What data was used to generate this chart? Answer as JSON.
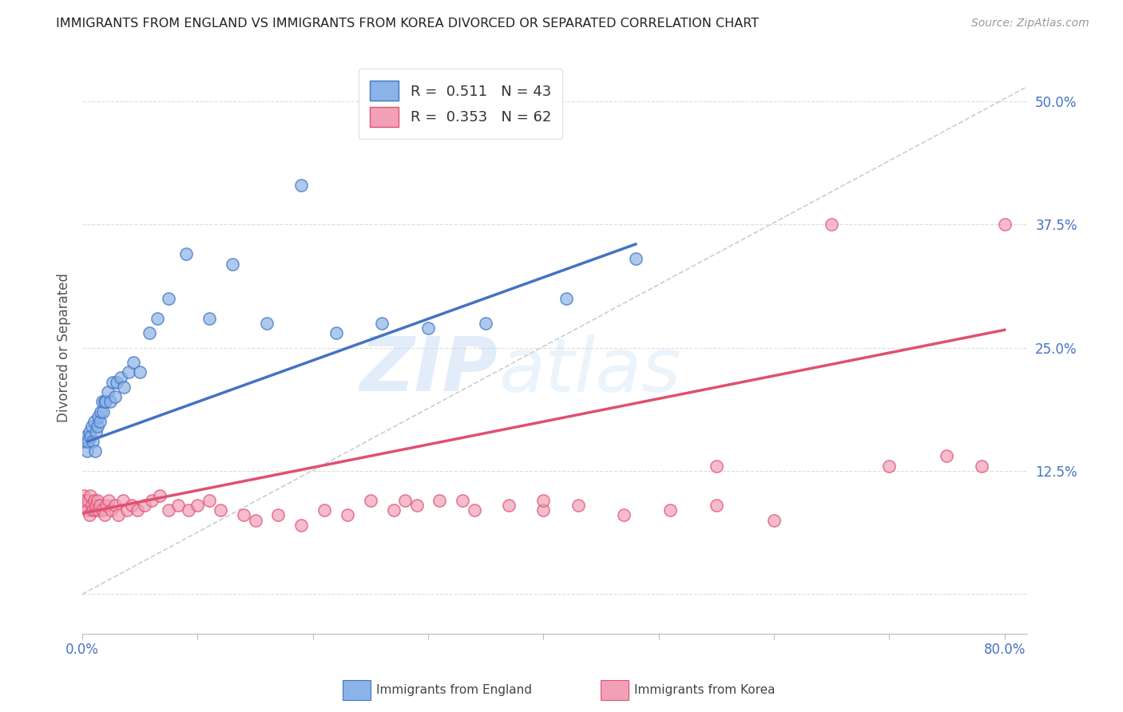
{
  "title": "IMMIGRANTS FROM ENGLAND VS IMMIGRANTS FROM KOREA DIVORCED OR SEPARATED CORRELATION CHART",
  "source": "Source: ZipAtlas.com",
  "ylabel": "Divorced or Separated",
  "legend_line1": "R =  0.511   N = 43",
  "legend_line2": "R =  0.353   N = 62",
  "legend_label1": "Immigrants from England",
  "legend_label2": "Immigrants from Korea",
  "xlim": [
    0.0,
    0.82
  ],
  "ylim": [
    -0.04,
    0.54
  ],
  "xticks": [
    0.0,
    0.1,
    0.2,
    0.3,
    0.4,
    0.5,
    0.6,
    0.7,
    0.8
  ],
  "xticklabels": [
    "0.0%",
    "",
    "",
    "",
    "",
    "",
    "",
    "",
    "80.0%"
  ],
  "yticks": [
    0.0,
    0.125,
    0.25,
    0.375,
    0.5
  ],
  "yticklabels": [
    "",
    "12.5%",
    "25.0%",
    "37.5%",
    "50.0%"
  ],
  "color_england": "#8ab4e8",
  "color_korea": "#f2a0b8",
  "color_line_england": "#4472c4",
  "color_line_korea": "#e05070",
  "color_ref_line": "#c8c8c8",
  "color_ticks": "#4472c4",
  "watermark_zip": "ZIP",
  "watermark_atlas": "atlas",
  "eng_line_x0": 0.005,
  "eng_line_y0": 0.155,
  "eng_line_x1": 0.48,
  "eng_line_y1": 0.355,
  "kor_line_x0": 0.0,
  "kor_line_y0": 0.082,
  "kor_line_x1": 0.8,
  "kor_line_y1": 0.268,
  "england_scatter_x": [
    0.002,
    0.003,
    0.004,
    0.005,
    0.006,
    0.007,
    0.008,
    0.009,
    0.01,
    0.011,
    0.012,
    0.013,
    0.014,
    0.015,
    0.016,
    0.017,
    0.018,
    0.019,
    0.02,
    0.022,
    0.024,
    0.026,
    0.028,
    0.03,
    0.033,
    0.036,
    0.04,
    0.044,
    0.05,
    0.058,
    0.065,
    0.075,
    0.09,
    0.11,
    0.13,
    0.16,
    0.19,
    0.22,
    0.26,
    0.3,
    0.35,
    0.42,
    0.48
  ],
  "england_scatter_y": [
    0.155,
    0.16,
    0.145,
    0.155,
    0.165,
    0.16,
    0.17,
    0.155,
    0.175,
    0.145,
    0.165,
    0.17,
    0.18,
    0.175,
    0.185,
    0.195,
    0.185,
    0.195,
    0.195,
    0.205,
    0.195,
    0.215,
    0.2,
    0.215,
    0.22,
    0.21,
    0.225,
    0.235,
    0.225,
    0.265,
    0.28,
    0.3,
    0.345,
    0.28,
    0.335,
    0.275,
    0.415,
    0.265,
    0.275,
    0.27,
    0.275,
    0.3,
    0.34
  ],
  "korea_scatter_x": [
    0.001,
    0.002,
    0.003,
    0.004,
    0.005,
    0.006,
    0.007,
    0.008,
    0.009,
    0.01,
    0.011,
    0.012,
    0.013,
    0.014,
    0.015,
    0.017,
    0.019,
    0.021,
    0.023,
    0.025,
    0.028,
    0.031,
    0.035,
    0.039,
    0.043,
    0.048,
    0.054,
    0.06,
    0.067,
    0.075,
    0.083,
    0.092,
    0.1,
    0.11,
    0.12,
    0.14,
    0.15,
    0.17,
    0.19,
    0.21,
    0.23,
    0.25,
    0.27,
    0.29,
    0.31,
    0.34,
    0.37,
    0.4,
    0.43,
    0.47,
    0.51,
    0.55,
    0.6,
    0.65,
    0.7,
    0.75,
    0.78,
    0.8,
    0.33,
    0.28,
    0.4,
    0.55
  ],
  "korea_scatter_y": [
    0.1,
    0.095,
    0.09,
    0.085,
    0.095,
    0.08,
    0.1,
    0.09,
    0.085,
    0.095,
    0.085,
    0.09,
    0.095,
    0.085,
    0.09,
    0.085,
    0.08,
    0.09,
    0.095,
    0.085,
    0.09,
    0.08,
    0.095,
    0.085,
    0.09,
    0.085,
    0.09,
    0.095,
    0.1,
    0.085,
    0.09,
    0.085,
    0.09,
    0.095,
    0.085,
    0.08,
    0.075,
    0.08,
    0.07,
    0.085,
    0.08,
    0.095,
    0.085,
    0.09,
    0.095,
    0.085,
    0.09,
    0.085,
    0.09,
    0.08,
    0.085,
    0.09,
    0.075,
    0.375,
    0.13,
    0.14,
    0.13,
    0.375,
    0.095,
    0.095,
    0.095,
    0.13
  ]
}
